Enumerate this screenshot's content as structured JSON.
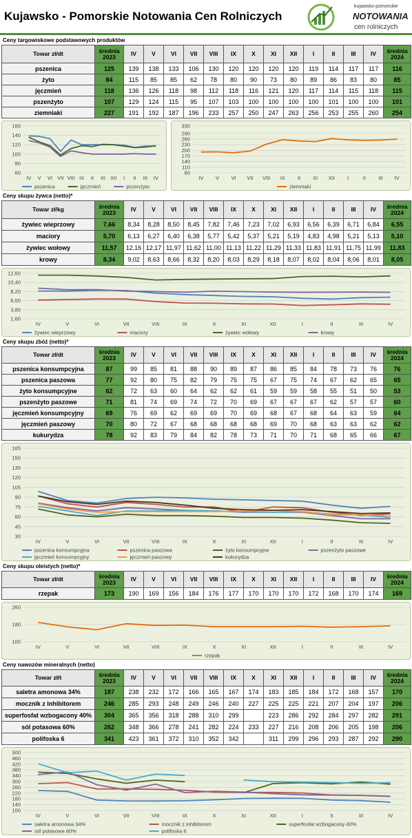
{
  "header": {
    "title": "Kujawsko - Pomorskie Notowania Cen Rolniczych",
    "logo": [
      "kujawsko-pomorskie",
      "NOTOWANIA",
      "cen rolniczych"
    ]
  },
  "sections": [
    {
      "title": "Ceny targowiskowe podstawowych produktów",
      "table": {
        "columns": [
          "Towar zł/dt",
          "średnia 2023",
          "IV",
          "V",
          "VI",
          "VII",
          "VIII",
          "IX",
          "X",
          "XI",
          "XII",
          "I",
          "II",
          "III",
          "IV",
          "średnia 2024"
        ],
        "rows": [
          [
            "pszenica",
            125,
            139,
            138,
            133,
            106,
            130,
            120,
            120,
            120,
            120,
            119,
            114,
            117,
            117,
            116
          ],
          [
            "żyto",
            84,
            115,
            85,
            85,
            62,
            78,
            80,
            90,
            73,
            80,
            89,
            86,
            83,
            80,
            85
          ],
          [
            "jęczmień",
            118,
            136,
            126,
            118,
            98,
            112,
            118,
            116,
            121,
            120,
            117,
            114,
            115,
            118,
            115
          ],
          [
            "pszenżyto",
            107,
            129,
            124,
            115,
            95,
            107,
            103,
            100,
            100,
            100,
            100,
            101,
            100,
            100,
            101
          ],
          [
            "ziemniaki",
            227,
            191,
            192,
            187,
            196,
            233,
            257,
            250,
            247,
            263,
            256,
            253,
            255,
            260,
            254
          ]
        ]
      }
    },
    {
      "title": "Ceny skupu żywca (netto)*",
      "table": {
        "columns": [
          "Towar zł/kg",
          "średnia 2023",
          "IV",
          "V",
          "VI",
          "VII",
          "VIII",
          "IX",
          "X",
          "XI",
          "XII",
          "I",
          "II",
          "III",
          "IV",
          "średnia 2024"
        ],
        "rows": [
          [
            "żywiec wieprzowy",
            "7,66",
            "8,34",
            "8,28",
            "8,50",
            "8,45",
            "7,82",
            "7,46",
            "7,23",
            "7,02",
            "6,93",
            "6,56",
            "6,39",
            "6,71",
            "6,84",
            "6,55"
          ],
          [
            "maciory",
            "5,70",
            "6,13",
            "6,27",
            "6,40",
            "6,38",
            "5,77",
            "5,42",
            "5,37",
            "5,21",
            "5,19",
            "4,83",
            "4,98",
            "5,21",
            "5,13",
            "5,10"
          ],
          [
            "żywiec wołowy",
            "11,57",
            "12,16",
            "12,17",
            "11,97",
            "11,62",
            "11,00",
            "11,13",
            "11,22",
            "11,29",
            "11,33",
            "11,83",
            "11,91",
            "11,75",
            "11,99",
            "11,83"
          ],
          [
            "krowy",
            "8,34",
            "9,02",
            "8,63",
            "8,66",
            "8,32",
            "8,20",
            "8,03",
            "8,29",
            "8,18",
            "8,07",
            "8,02",
            "8,04",
            "8,06",
            "8,01",
            "8,05"
          ]
        ]
      }
    },
    {
      "title": "Ceny skupu zbóż (netto)*",
      "table": {
        "columns": [
          "Towar zł/dt",
          "średnia 2023",
          "IV",
          "V",
          "VI",
          "VII",
          "VIII",
          "IX",
          "X",
          "XI",
          "XII",
          "I",
          "II",
          "III",
          "IV",
          "średnia 2024"
        ],
        "rows": [
          [
            "pszenica konsumpcyjna",
            87,
            99,
            85,
            81,
            88,
            90,
            89,
            87,
            86,
            85,
            84,
            78,
            73,
            76,
            76
          ],
          [
            "pszenica paszowa",
            77,
            92,
            80,
            75,
            82,
            79,
            75,
            75,
            67,
            75,
            74,
            67,
            62,
            65,
            65
          ],
          [
            "żyto konsumpcyjne",
            62,
            72,
            63,
            60,
            64,
            62,
            62,
            61,
            59,
            59,
            58,
            55,
            51,
            50,
            53
          ],
          [
            "pszenżyto paszowe",
            71,
            81,
            74,
            69,
            74,
            72,
            70,
            69,
            67,
            67,
            67,
            62,
            57,
            57,
            60
          ],
          [
            "jęczmień konsumpcyjny",
            69,
            76,
            69,
            62,
            69,
            69,
            70,
            69,
            68,
            67,
            68,
            64,
            63,
            59,
            64
          ],
          [
            "jęczmień paszowy",
            70,
            80,
            72,
            67,
            68,
            68,
            68,
            68,
            69,
            70,
            68,
            63,
            63,
            62,
            62
          ],
          [
            "kukurydza",
            78,
            92,
            83,
            79,
            84,
            82,
            78,
            73,
            71,
            70,
            71,
            68,
            65,
            66,
            67
          ]
        ]
      }
    },
    {
      "title": "Ceny skupu oleistych (netto)*",
      "table": {
        "columns": [
          "Towar zł/dt",
          "średnia 2023",
          "IV",
          "V",
          "VI",
          "VII",
          "VIII",
          "IX",
          "X",
          "XI",
          "XII",
          "I",
          "II",
          "III",
          "IV",
          "średnia 2024"
        ],
        "rows": [
          [
            "rzepak",
            173,
            190,
            169,
            156,
            184,
            176,
            177,
            170,
            170,
            170,
            172,
            168,
            170,
            174,
            169
          ]
        ]
      }
    },
    {
      "title": "Ceny nawozów mineralnych (netto)",
      "table": {
        "columns": [
          "Towar zł/t",
          "średnia 2023",
          "IV",
          "V",
          "VI",
          "VII",
          "VIII",
          "IX",
          "X",
          "XI",
          "XII",
          "I",
          "II",
          "III",
          "IV",
          "średnia 2024"
        ],
        "rows": [
          [
            "saletra amonowa 34%",
            187,
            238,
            232,
            172,
            166,
            165,
            167,
            174,
            183,
            185,
            184,
            172,
            168,
            157,
            170
          ],
          [
            "mocznik z inhibitorem",
            246,
            285,
            293,
            248,
            249,
            246,
            240,
            227,
            225,
            225,
            221,
            207,
            204,
            197,
            206
          ],
          [
            "superfosfat wzbogacony 40%",
            304,
            365,
            356,
            318,
            288,
            310,
            299,
            null,
            223,
            286,
            292,
            284,
            297,
            282,
            291
          ],
          [
            "sól potasowa 60%",
            262,
            348,
            366,
            278,
            241,
            282,
            224,
            233,
            227,
            216,
            208,
            206,
            205,
            198,
            206
          ],
          [
            "polifoska 6",
            341,
            423,
            361,
            372,
            310,
            352,
            342,
            null,
            311,
            299,
            296,
            293,
            287,
            292,
            290
          ]
        ]
      }
    }
  ],
  "chart_data": [
    {
      "type": "line",
      "categories": [
        "IV",
        "V",
        "VI",
        "VII",
        "VIII",
        "IX",
        "X",
        "XI",
        "XII",
        "I",
        "II",
        "III",
        "IV"
      ],
      "ylim": [
        60,
        160
      ],
      "yticks": [
        60,
        80,
        100,
        120,
        140,
        160
      ],
      "grid": true,
      "legend": "bottom",
      "series": [
        {
          "name": "pszenica",
          "color": "#4f81bd",
          "values": [
            139,
            138,
            133,
            106,
            130,
            120,
            120,
            120,
            120,
            119,
            114,
            117,
            117
          ]
        },
        {
          "name": "jęczmień",
          "color": "#4f6228",
          "values": [
            136,
            126,
            118,
            98,
            112,
            118,
            116,
            121,
            120,
            117,
            114,
            115,
            118
          ]
        },
        {
          "name": "pszenżyto",
          "color": "#8064a2",
          "values": [
            129,
            124,
            115,
            95,
            107,
            103,
            100,
            100,
            100,
            100,
            101,
            100,
            100
          ]
        }
      ]
    },
    {
      "type": "line",
      "categories": [
        "IV",
        "V",
        "VI",
        "VII",
        "VIII",
        "IX",
        "X",
        "XI",
        "XII",
        "I",
        "II",
        "III",
        "IV"
      ],
      "ylim": [
        80,
        330
      ],
      "yticks": [
        80,
        110,
        140,
        170,
        200,
        230,
        260,
        290,
        330
      ],
      "grid": true,
      "legend": "bottom",
      "series": [
        {
          "name": "ziemniaki",
          "color": "#e46c0a",
          "values": [
            191,
            192,
            187,
            196,
            233,
            257,
            250,
            247,
            263,
            256,
            253,
            255,
            260
          ]
        }
      ]
    },
    {
      "type": "line",
      "categories": [
        "IV",
        "V",
        "VI",
        "VII",
        "VIII",
        "IX",
        "X",
        "XI",
        "XII",
        "I",
        "II",
        "III",
        "IV"
      ],
      "ylim": [
        1.6,
        12.6
      ],
      "yticks": [
        {
          "value": 1.6,
          "label": "1,60"
        },
        {
          "value": 3.8,
          "label": "3,80"
        },
        {
          "value": 6,
          "label": "6,00"
        },
        {
          "value": 8.2,
          "label": "8,20"
        },
        {
          "value": 10.4,
          "label": "10,40"
        },
        {
          "value": 12.6,
          "label": "12,60"
        }
      ],
      "grid": true,
      "legend": "bottom",
      "series": [
        {
          "name": "żywiec wieprzowy",
          "color": "#4f81bd",
          "values": [
            8.34,
            8.28,
            8.5,
            8.45,
            7.82,
            7.46,
            7.23,
            7.02,
            6.93,
            6.56,
            6.39,
            6.71,
            6.84
          ]
        },
        {
          "name": "maciory",
          "color": "#c0504d",
          "values": [
            6.13,
            6.27,
            6.4,
            6.38,
            5.77,
            5.42,
            5.37,
            5.21,
            5.19,
            4.83,
            4.98,
            5.21,
            5.13
          ]
        },
        {
          "name": "żywiec wołowy",
          "color": "#4f6228",
          "values": [
            12.16,
            12.17,
            11.97,
            11.62,
            11,
            11.13,
            11.22,
            11.29,
            11.33,
            11.83,
            11.91,
            11.75,
            11.99
          ]
        },
        {
          "name": "krowy",
          "color": "#8064a2",
          "values": [
            9.02,
            8.63,
            8.66,
            8.32,
            8.2,
            8.03,
            8.29,
            8.18,
            8.07,
            8.02,
            8.04,
            8.06,
            8.01
          ]
        }
      ]
    },
    {
      "type": "line",
      "categories": [
        "IV",
        "V",
        "VI",
        "VII",
        "VIII",
        "IX",
        "X",
        "XI",
        "XII",
        "I",
        "II",
        "III",
        "IV"
      ],
      "ylim": [
        30,
        165
      ],
      "yticks": [
        30,
        45,
        60,
        75,
        90,
        105,
        120,
        135,
        150,
        165
      ],
      "grid": true,
      "legend": "bottom",
      "series": [
        {
          "name": "pszenica konsumpcyjna",
          "color": "#4f81bd",
          "values": [
            99,
            85,
            81,
            88,
            90,
            89,
            87,
            86,
            85,
            84,
            78,
            73,
            76
          ]
        },
        {
          "name": "pszenica paszowa",
          "color": "#c0504d",
          "values": [
            92,
            80,
            75,
            82,
            79,
            75,
            75,
            67,
            75,
            74,
            67,
            62,
            65
          ]
        },
        {
          "name": "żyto konsumpcyjne",
          "color": "#4f6228",
          "values": [
            72,
            63,
            60,
            64,
            62,
            62,
            61,
            59,
            59,
            58,
            55,
            51,
            50
          ]
        },
        {
          "name": "pszenżyto paszowe",
          "color": "#8064a2",
          "values": [
            81,
            74,
            69,
            74,
            72,
            70,
            69,
            67,
            67,
            67,
            62,
            57,
            57
          ]
        },
        {
          "name": "jęczmień konsumpcyjny",
          "color": "#4bacc6",
          "values": [
            76,
            69,
            62,
            69,
            69,
            70,
            69,
            68,
            67,
            68,
            64,
            63,
            59
          ]
        },
        {
          "name": "jęczmień paszowy",
          "color": "#f79646",
          "values": [
            80,
            72,
            67,
            68,
            68,
            68,
            68,
            69,
            70,
            68,
            63,
            63,
            62
          ]
        },
        {
          "name": "kukurydza",
          "color": "#4a3424",
          "values": [
            92,
            83,
            79,
            84,
            82,
            78,
            73,
            71,
            70,
            71,
            68,
            65,
            66
          ]
        }
      ]
    },
    {
      "type": "line",
      "categories": [
        "IV",
        "V",
        "VI",
        "VII",
        "VIII",
        "IX",
        "X",
        "XI",
        "XII",
        "I",
        "II",
        "III",
        "IV"
      ],
      "ylim": [
        100,
        260
      ],
      "yticks": [
        100,
        180,
        260
      ],
      "grid": true,
      "legend": "bottom",
      "series": [
        {
          "name": "rzepak",
          "color": "#e46c0a",
          "values": [
            190,
            169,
            156,
            184,
            176,
            177,
            170,
            170,
            170,
            172,
            168,
            170,
            174
          ]
        }
      ]
    },
    {
      "type": "line",
      "categories": [
        "IV",
        "V",
        "VI",
        "VII",
        "VIII",
        "IX",
        "X",
        "XI",
        "XII",
        "I",
        "II",
        "III",
        "IV"
      ],
      "ylim": [
        100,
        500
      ],
      "yticks": [
        100,
        140,
        180,
        220,
        260,
        300,
        340,
        380,
        420,
        460,
        500
      ],
      "grid": true,
      "legend": "bottom",
      "series": [
        {
          "name": "saletra amonowa 34%",
          "color": "#4f81bd",
          "values": [
            238,
            232,
            172,
            166,
            165,
            167,
            174,
            183,
            185,
            184,
            172,
            168,
            157
          ]
        },
        {
          "name": "mocznik z inhibitorem",
          "color": "#c0504d",
          "values": [
            285,
            293,
            248,
            249,
            246,
            240,
            227,
            225,
            225,
            221,
            207,
            204,
            197
          ]
        },
        {
          "name": "superfosfat wzbogacony 40%",
          "color": "#4f6228",
          "values": [
            365,
            356,
            318,
            288,
            310,
            299,
            null,
            223,
            286,
            292,
            284,
            297,
            282
          ]
        },
        {
          "name": "sól potasowa 60%",
          "color": "#8064a2",
          "values": [
            348,
            366,
            278,
            241,
            282,
            224,
            233,
            227,
            216,
            208,
            206,
            205,
            198
          ]
        },
        {
          "name": "polifoska 6",
          "color": "#4bacc6",
          "values": [
            423,
            361,
            372,
            310,
            352,
            342,
            null,
            311,
            299,
            296,
            293,
            287,
            292
          ]
        }
      ]
    }
  ]
}
